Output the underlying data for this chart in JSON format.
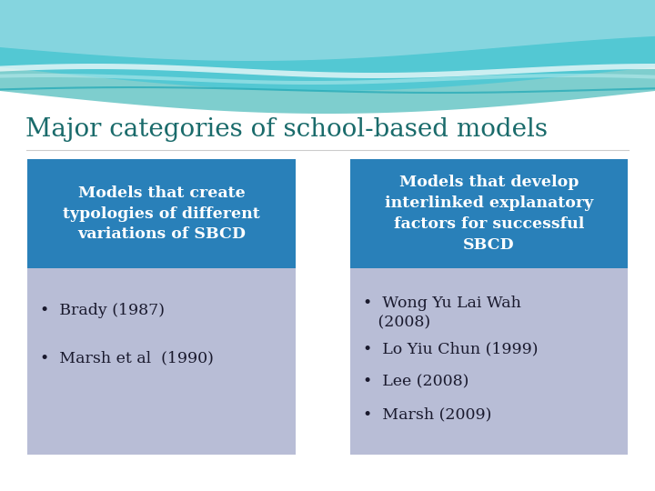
{
  "title": "Major categories of school-based models",
  "title_color": "#1a6b6b",
  "title_fontsize": 20,
  "background_color": "#ffffff",
  "header_bg_color": "#2980b9",
  "body_bg_color": "#b8bdd6",
  "header_text_color": "#ffffff",
  "body_text_color": "#1a1a2e",
  "col1_header": "Models that create\ntypologies of different\nvariations of SBCD",
  "col2_header": "Models that develop\ninterlinked explanatory\nfactors for successful\nSBCD",
  "col1_items": [
    "Brady (1987)",
    "Marsh et al  (1990)"
  ],
  "col2_items": [
    "Wong Yu Lai Wah\n   (2008)",
    "Lo Yiu Chun (1999)",
    "Lee (2008)",
    "Marsh (2009)"
  ]
}
